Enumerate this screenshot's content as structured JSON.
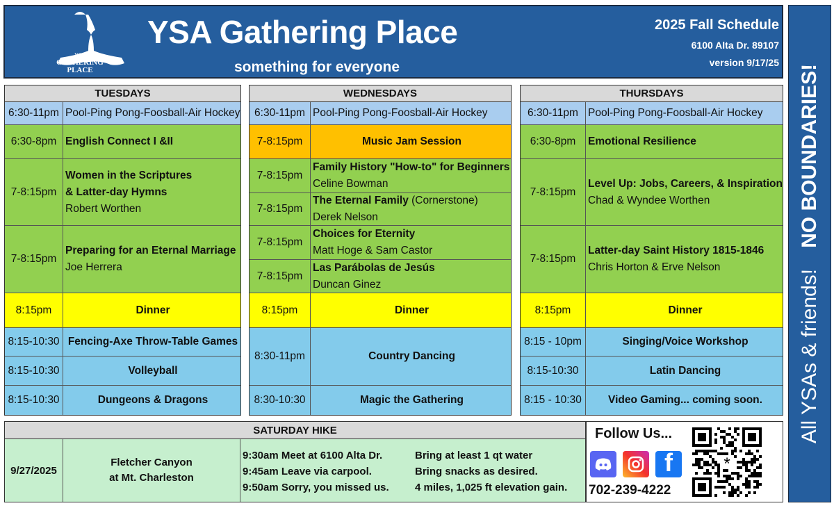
{
  "header": {
    "logo_text": [
      "YSA",
      "GATHERING",
      "PLACE"
    ],
    "title": "YSA Gathering Place",
    "subtitle": "something for everyone",
    "schedule": "2025 Fall Schedule",
    "address": "6100 Alta Dr. 89107",
    "version": "version 9/17/25"
  },
  "side_banner": {
    "text": "All YSAs & friends!",
    "emphasis": "NO BOUNDARIES!"
  },
  "colors": {
    "blue": "#255e9e",
    "green": "#92d050",
    "yellow": "#ffff00",
    "orange": "#ffc000",
    "light_blue": "#83cbeb",
    "pale_blue": "#a9cdef",
    "pale_green": "#c6efce"
  },
  "days": [
    {
      "name": "TUESDAYS",
      "rows": [
        {
          "time": "6:30-11pm",
          "title": "",
          "subtitle": "Pool-Ping Pong-Foosball-Air Hockey",
          "color": "pale_blue"
        },
        {
          "time": "6:30-8pm",
          "title": "English Connect I &II",
          "color": "green"
        },
        {
          "time": "7-8:15pm",
          "title": "Women in the Scriptures",
          "title2": "& Latter-day Hymns",
          "subtitle": "Robert Worthen",
          "color": "green"
        },
        {
          "time": "7-8:15pm",
          "title": "Preparing for an Eternal Marriage",
          "subtitle": "Joe Herrera",
          "color": "green"
        },
        {
          "time": "8:15pm",
          "title": "Dinner",
          "color": "yellow",
          "center": true
        },
        {
          "time": "8:15-10:30",
          "title": "Fencing-Axe Throw-Table Games",
          "color": "light_blue",
          "center": true
        },
        {
          "time": "8:15-10:30",
          "title": "Volleyball",
          "color": "light_blue",
          "center": true
        },
        {
          "time": "8:15-10:30",
          "title": "Dungeons & Dragons",
          "color": "light_blue",
          "center": true
        }
      ]
    },
    {
      "name": "WEDNESDAYS",
      "rows": [
        {
          "time": "6:30-11pm",
          "title": "",
          "subtitle": "Pool-Ping Pong-Foosball-Air Hockey",
          "color": "pale_blue"
        },
        {
          "time": "7-8:15pm",
          "title": "Music Jam Session",
          "color": "orange",
          "center": true
        },
        {
          "time": "7-8:15pm",
          "title": "Family History \"How-to\" for Beginners",
          "subtitle": "Celine Bowman",
          "color": "green"
        },
        {
          "time": "7-8:15pm",
          "title": "The Eternal Family",
          "title_suffix": " (Cornerstone)",
          "subtitle": "Derek Nelson",
          "color": "green"
        },
        {
          "time": "7-8:15pm",
          "title": "Choices for Eternity",
          "subtitle": "Matt Hoge & Sam Castor",
          "color": "green"
        },
        {
          "time": "7-8:15pm",
          "title": "Las Parábolas de Jesús",
          "subtitle": "Duncan Ginez",
          "color": "green"
        },
        {
          "time": "8:15pm",
          "title": "Dinner",
          "color": "yellow",
          "center": true
        },
        {
          "time": "8:30-11pm",
          "title": "Country Dancing",
          "color": "light_blue",
          "center": true
        },
        {
          "time": "8:30-10:30",
          "title": "Magic the Gathering",
          "color": "light_blue",
          "center": true
        }
      ]
    },
    {
      "name": "THURSDAYS",
      "rows": [
        {
          "time": "6:30-11pm",
          "title": "",
          "subtitle": "Pool-Ping Pong-Foosball-Air Hockey",
          "color": "pale_blue"
        },
        {
          "time": "6:30-8pm",
          "title": "Emotional Resilience",
          "color": "green"
        },
        {
          "time": "7-8:15pm",
          "title": "Level Up: Jobs, Careers, & Inspiration",
          "subtitle": "Chad & Wyndee  Worthen",
          "color": "green"
        },
        {
          "time": "7-8:15pm",
          "title": "Latter-day Saint History 1815-1846",
          "subtitle": "Chris Horton & Erve Nelson",
          "color": "green"
        },
        {
          "time": "8:15pm",
          "title": "Dinner",
          "color": "yellow",
          "center": true
        },
        {
          "time": "8:15 - 10pm",
          "title": "Singing/Voice  Workshop",
          "color": "light_blue",
          "center": true
        },
        {
          "time": "8:15-10:30",
          "title": "Latin Dancing",
          "color": "light_blue",
          "center": true
        },
        {
          "time": "8:15 - 10:30",
          "title": "Video Gaming...  coming soon.",
          "color": "light_blue",
          "center": true
        }
      ]
    }
  ],
  "saturday": {
    "heading": "SATURDAY  HIKE",
    "date": "9/27/2025",
    "place": [
      "Fletcher Canyon",
      "at Mt. Charleston"
    ],
    "lines": [
      {
        "left": "9:30am  Meet at 6100 Alta Dr.",
        "right": "Bring at least 1 qt water"
      },
      {
        "left": "9:45am  Leave via carpool.",
        "right": "Bring snacks as desired."
      },
      {
        "left": "9:50am  Sorry, you missed us.",
        "right": "4 miles, 1,025 ft elevation gain."
      }
    ]
  },
  "follow": {
    "title": "Follow Us...",
    "phone": "702-239-4222",
    "icons": [
      "discord-icon",
      "instagram-icon",
      "facebook-icon",
      "qr-code-icon"
    ]
  }
}
